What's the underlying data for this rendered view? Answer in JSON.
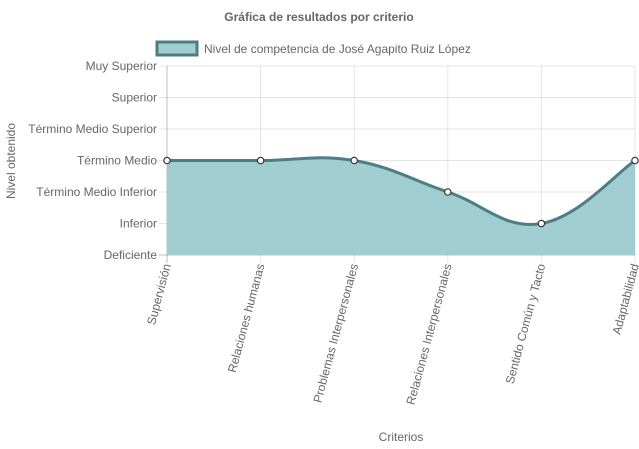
{
  "chart_data": {
    "type": "area",
    "title": "Gráfica de resultados por criterio",
    "xlabel": "Criterios",
    "ylabel": "Nivel obtenido",
    "categories": [
      "Supervisión",
      "Relaciones humanas",
      "Problemas Interpersonales",
      "Relaciones Interpersonales",
      "Sentido Común y Tacto",
      "Adaptabilidad"
    ],
    "y_levels": [
      "Deficiente",
      "Inferior",
      "Término Medio Inferior",
      "Término Medio",
      "Término Medio Superior",
      "Superior",
      "Muy Superior"
    ],
    "ylim": [
      0,
      6
    ],
    "grid": true,
    "legend_position": "top",
    "series": [
      {
        "name": "Nivel de competencia de José Agapito Ruiz López",
        "values": [
          3,
          3,
          3,
          2,
          1,
          3
        ],
        "fill_color": "#a0cdd0",
        "line_color": "#4f7d85"
      }
    ]
  }
}
